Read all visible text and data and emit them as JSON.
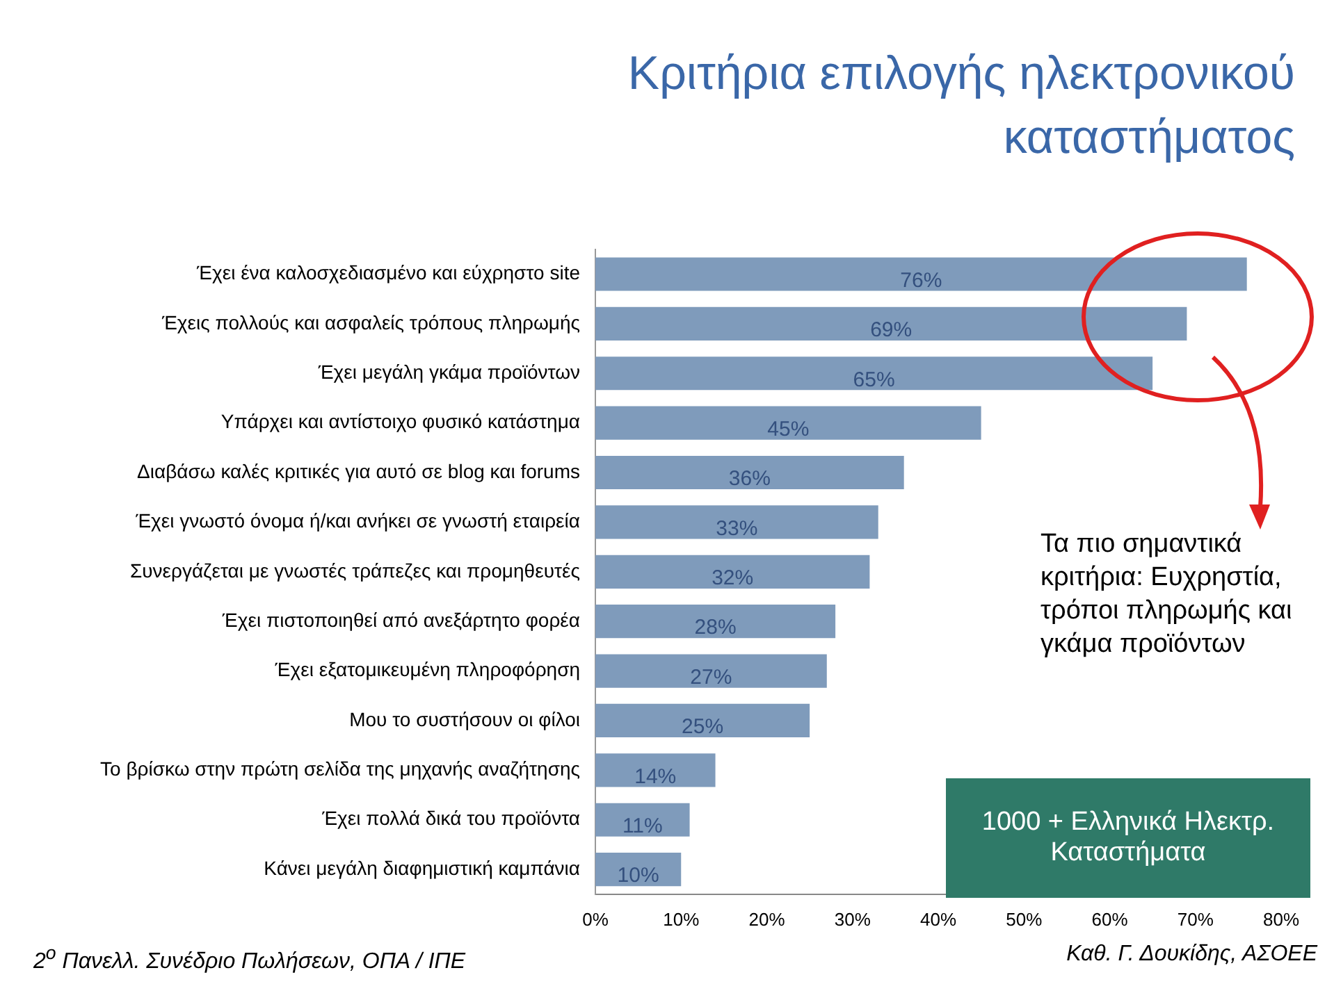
{
  "chart_data": {
    "type": "bar",
    "orientation": "horizontal",
    "title": "Κριτήρια επιλογής ηλεκτρονικού καταστήματος",
    "categories": [
      "Έχει ένα καλοσχεδιασμένο και εύχρηστο site",
      "Έχεις πολλούς και ασφαλείς τρόπους πληρωμής",
      "Έχει μεγάλη γκάμα προϊόντων",
      "Υπάρχει και αντίστοιχο φυσικό κατάστημα",
      "Διαβάσω καλές κριτικές για αυτό σε blog και forums",
      "Έχει γνωστό όνομα ή/και ανήκει σε γνωστή εταιρεία",
      "Συνεργάζεται με γνωστές τράπεζες και προμηθευτές",
      "Έχει πιστοποιηθεί από ανεξάρτητο φορέα",
      "Έχει εξατομικευμένη πληροφόρηση",
      "Μου το συστήσουν οι φίλοι",
      "Το βρίσκω στην πρώτη σελίδα της μηχανής αναζήτησης",
      "Έχει πολλά δικά του προϊόντα",
      "Κάνει μεγάλη διαφημιστική καμπάνια"
    ],
    "values": [
      76,
      69,
      65,
      45,
      36,
      33,
      32,
      28,
      27,
      25,
      14,
      11,
      10
    ],
    "color": "#7f9bbb",
    "value_labels": [
      "76%",
      "69%",
      "65%",
      "45%",
      "36%",
      "33%",
      "32%",
      "28%",
      "27%",
      "25%",
      "14%",
      "11%",
      "10%"
    ],
    "xlim": [
      0,
      80
    ],
    "xticks": [
      {
        "value": 0,
        "label": "0%"
      },
      {
        "value": 10,
        "label": "10%"
      },
      {
        "value": 20,
        "label": "20%"
      },
      {
        "value": 30,
        "label": "30%"
      },
      {
        "value": 40,
        "label": "40%"
      },
      {
        "value": 50,
        "label": "50%"
      },
      {
        "value": 60,
        "label": "60%"
      },
      {
        "value": 70,
        "label": "70%"
      },
      {
        "value": 80,
        "label": "80%"
      }
    ],
    "grid": false,
    "legend": false,
    "annotations": [
      "Τα πιο σημαντικά κριτήρια: Ευχρηστία, τρόποι πληρωμής και γκάμα προϊόντων",
      "1000 + Ελληνικά Ηλεκτρ. Καταστήματα",
      "2$^{ο}$ Πανελλ. Συνέδριο Πωλήσεων, ΟΠΑ / ΙΠΕ",
      "Καθ. Γ. Δουκίδης, ΑΣΟΕΕ"
    ]
  }
}
